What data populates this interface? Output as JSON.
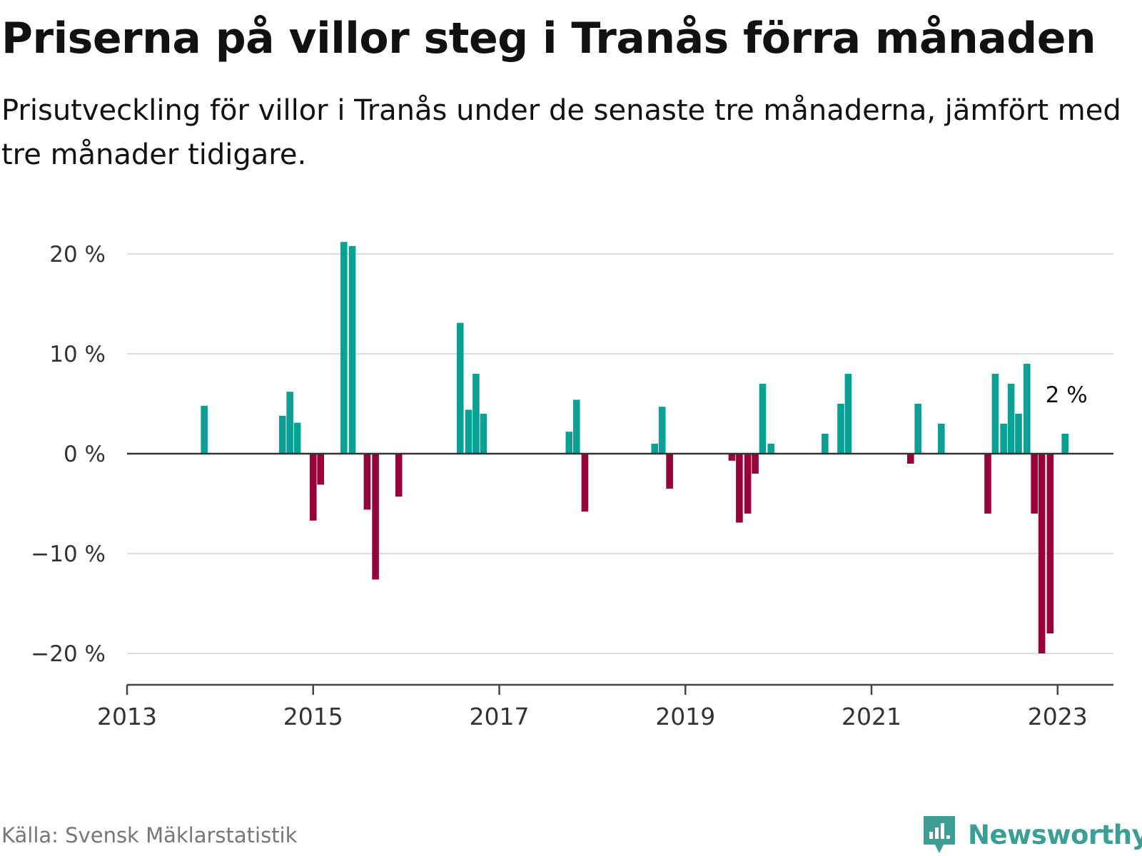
{
  "title": "Priserna på villor steg i Tranås förra månaden",
  "subtitle": "Prisutveckling för villor i Tranås under de senaste tre månaderna, jämfört med tre månader tidigare.",
  "source": "Källa: Svensk Mäklarstatistik",
  "brand": "Newsworthy",
  "colors": {
    "positive": "#0aa195",
    "negative": "#98003a",
    "grid": "#dddddd",
    "axis": "#444444",
    "brand": "#3c9e94"
  },
  "chart_data": {
    "type": "bar",
    "title": "Priserna på villor steg i Tranås förra månaden",
    "xlabel": "",
    "ylabel": "",
    "x_range": [
      2013.0,
      2023.6
    ],
    "ylim": [
      -23,
      23
    ],
    "y_ticks": [
      {
        "value": 20,
        "label": "20 %"
      },
      {
        "value": 10,
        "label": "10 %"
      },
      {
        "value": 0,
        "label": "0 %"
      },
      {
        "value": -10,
        "label": "−10 %"
      },
      {
        "value": -20,
        "label": "−20 %"
      }
    ],
    "x_ticks": [
      {
        "value": 2013,
        "label": "2013"
      },
      {
        "value": 2015,
        "label": "2015"
      },
      {
        "value": 2017,
        "label": "2017"
      },
      {
        "value": 2019,
        "label": "2019"
      },
      {
        "value": 2021,
        "label": "2021"
      },
      {
        "value": 2023,
        "label": "2023"
      }
    ],
    "annotation": {
      "x": 2023.08,
      "value": 2,
      "label": "2 %"
    },
    "series": [
      {
        "name": "Prisutveckling",
        "points": [
          {
            "x": 2013.83,
            "value": 4.8
          },
          {
            "x": 2014.67,
            "value": 3.8
          },
          {
            "x": 2014.75,
            "value": 6.2
          },
          {
            "x": 2014.83,
            "value": 3.1
          },
          {
            "x": 2015.0,
            "value": -6.7
          },
          {
            "x": 2015.08,
            "value": -3.1
          },
          {
            "x": 2015.33,
            "value": 21.2
          },
          {
            "x": 2015.42,
            "value": 20.8
          },
          {
            "x": 2015.58,
            "value": -5.6
          },
          {
            "x": 2015.67,
            "value": -12.6
          },
          {
            "x": 2015.92,
            "value": -4.3
          },
          {
            "x": 2016.58,
            "value": 13.1
          },
          {
            "x": 2016.67,
            "value": 4.4
          },
          {
            "x": 2016.75,
            "value": 8.0
          },
          {
            "x": 2016.83,
            "value": 4.0
          },
          {
            "x": 2017.75,
            "value": 2.2
          },
          {
            "x": 2017.83,
            "value": 5.4
          },
          {
            "x": 2017.92,
            "value": -5.8
          },
          {
            "x": 2018.67,
            "value": 1.0
          },
          {
            "x": 2018.75,
            "value": 4.7
          },
          {
            "x": 2018.83,
            "value": -3.5
          },
          {
            "x": 2019.5,
            "value": -0.7
          },
          {
            "x": 2019.58,
            "value": -6.9
          },
          {
            "x": 2019.67,
            "value": -6.0
          },
          {
            "x": 2019.75,
            "value": -2.0
          },
          {
            "x": 2019.83,
            "value": 7.0
          },
          {
            "x": 2019.92,
            "value": 1.0
          },
          {
            "x": 2020.5,
            "value": 2.0
          },
          {
            "x": 2020.67,
            "value": 5.0
          },
          {
            "x": 2020.75,
            "value": 8.0
          },
          {
            "x": 2021.42,
            "value": -1.0
          },
          {
            "x": 2021.5,
            "value": 5.0
          },
          {
            "x": 2021.75,
            "value": 3.0
          },
          {
            "x": 2022.25,
            "value": -6.0
          },
          {
            "x": 2022.33,
            "value": 8.0
          },
          {
            "x": 2022.42,
            "value": 3.0
          },
          {
            "x": 2022.5,
            "value": 7.0
          },
          {
            "x": 2022.58,
            "value": 4.0
          },
          {
            "x": 2022.67,
            "value": 9.0
          },
          {
            "x": 2022.75,
            "value": -6.0
          },
          {
            "x": 2022.83,
            "value": -20.0
          },
          {
            "x": 2022.92,
            "value": -18.0
          },
          {
            "x": 2023.08,
            "value": 2.0
          }
        ]
      }
    ]
  }
}
